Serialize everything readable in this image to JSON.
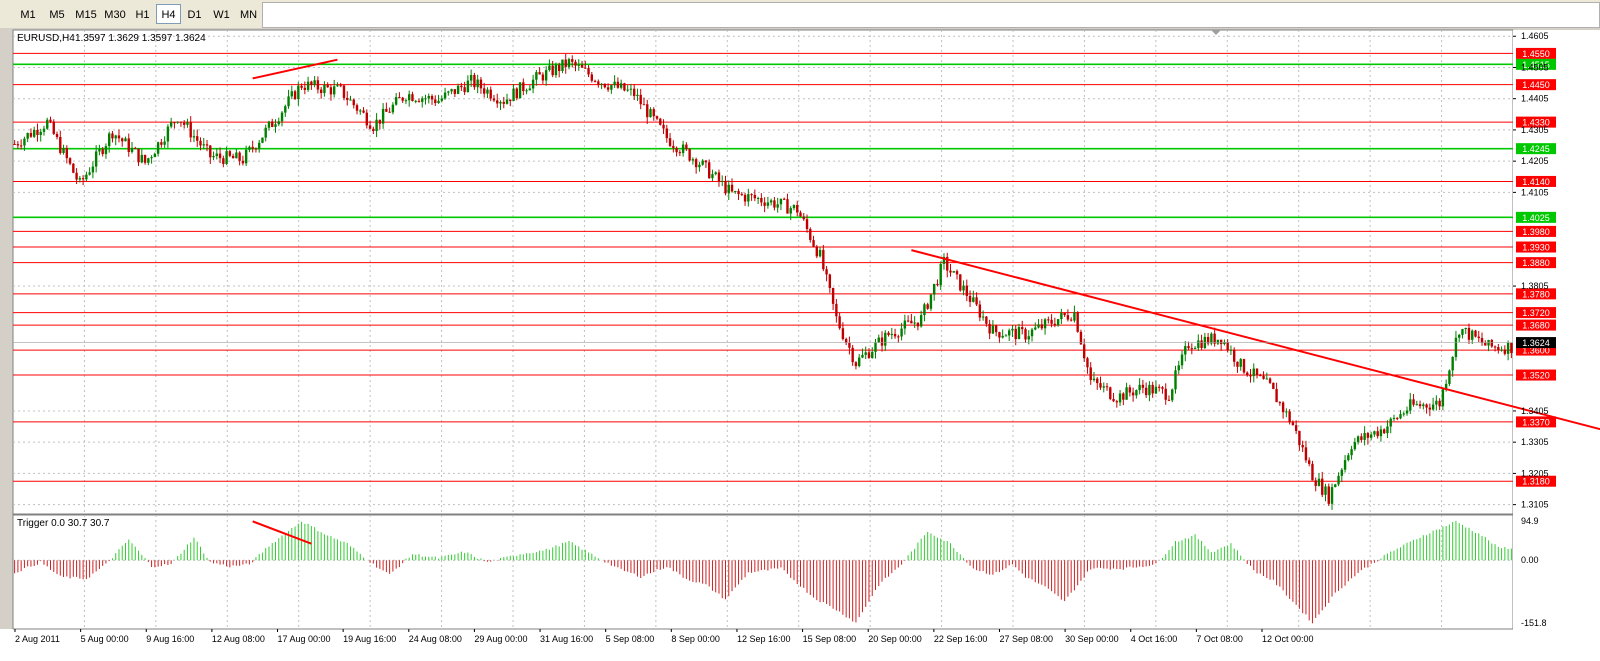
{
  "toolbar": {
    "timeframes": [
      "M1",
      "M5",
      "M15",
      "M30",
      "H1",
      "H4",
      "D1",
      "W1",
      "MN"
    ],
    "active": "H4"
  },
  "chart_header": {
    "symbol_tf": "EURUSD,H4",
    "ohlc": "1.3597 1.3629 1.3597 1.3624"
  },
  "indicator_header": "Trigger 0.0 30.7 30.7",
  "colors": {
    "background": "#ffffff",
    "grid": "#c0c0c0",
    "bull": "#008000",
    "bear": "#c00000",
    "red_level": "#ff0000",
    "green_level": "#00c800",
    "trendline": "#ff0000",
    "hist_up": "#33cc33",
    "hist_down": "#cc2020"
  },
  "chart_data": [
    {
      "type": "candlestick",
      "symbol": "EURUSD",
      "timeframe": "H4",
      "ylim": [
        1.3075,
        1.4625
      ],
      "y_ticks": [
        "1.4605",
        "1.4505",
        "1.4405",
        "1.4305",
        "1.4205",
        "1.4105",
        "1.3805",
        "1.3405",
        "1.3305",
        "1.3205",
        "1.3105"
      ],
      "x_ticks": [
        "2 Aug 2011",
        "5 Aug 00:00",
        "9 Aug 16:00",
        "12 Aug 08:00",
        "17 Aug 00:00",
        "19 Aug 16:00",
        "24 Aug 08:00",
        "29 Aug 00:00",
        "31 Aug 16:00",
        "5 Sep 08:00",
        "8 Sep 00:00",
        "12 Sep 16:00",
        "15 Sep 08:00",
        "20 Sep 00:00",
        "22 Sep 16:00",
        "27 Sep 08:00",
        "30 Sep 00:00",
        "4 Oct 16:00",
        "7 Oct 08:00",
        "12 Oct 00:00"
      ],
      "current_price": "1.3624",
      "levels": [
        {
          "value": "1.4550",
          "color": "red"
        },
        {
          "value": "1.4515",
          "color": "green"
        },
        {
          "value": "1.4450",
          "color": "red"
        },
        {
          "value": "1.4330",
          "color": "red"
        },
        {
          "value": "1.4245",
          "color": "green"
        },
        {
          "value": "1.4140",
          "color": "red"
        },
        {
          "value": "1.4025",
          "color": "green"
        },
        {
          "value": "1.3980",
          "color": "red"
        },
        {
          "value": "1.3930",
          "color": "red"
        },
        {
          "value": "1.3880",
          "color": "red"
        },
        {
          "value": "1.3780",
          "color": "red"
        },
        {
          "value": "1.3720",
          "color": "red"
        },
        {
          "value": "1.3680",
          "color": "red"
        },
        {
          "value": "1.3600",
          "color": "red"
        },
        {
          "value": "1.3520",
          "color": "red"
        },
        {
          "value": "1.3370",
          "color": "red"
        },
        {
          "value": "1.3180",
          "color": "red"
        }
      ],
      "trendlines": [
        {
          "from": {
            "bar": 73,
            "price": 1.447
          },
          "to": {
            "bar": 99,
            "price": 1.453
          }
        },
        {
          "from": {
            "bar": 275,
            "price": 1.392
          },
          "to": {
            "bar": 520,
            "price": 1.3255
          }
        }
      ],
      "anchor_points": [
        [
          0,
          1.426
        ],
        [
          10,
          1.433
        ],
        [
          20,
          1.413
        ],
        [
          30,
          1.43
        ],
        [
          40,
          1.42
        ],
        [
          50,
          1.435
        ],
        [
          60,
          1.422
        ],
        [
          70,
          1.421
        ],
        [
          80,
          1.434
        ],
        [
          88,
          1.445
        ],
        [
          100,
          1.443
        ],
        [
          110,
          1.432
        ],
        [
          120,
          1.442
        ],
        [
          130,
          1.44
        ],
        [
          140,
          1.446
        ],
        [
          150,
          1.44
        ],
        [
          160,
          1.447
        ],
        [
          170,
          1.452
        ],
        [
          180,
          1.446
        ],
        [
          190,
          1.442
        ],
        [
          200,
          1.428
        ],
        [
          210,
          1.42
        ],
        [
          220,
          1.41
        ],
        [
          230,
          1.408
        ],
        [
          240,
          1.405
        ],
        [
          247,
          1.39
        ],
        [
          252,
          1.37
        ],
        [
          258,
          1.356
        ],
        [
          268,
          1.365
        ],
        [
          278,
          1.37
        ],
        [
          285,
          1.388
        ],
        [
          292,
          1.378
        ],
        [
          300,
          1.366
        ],
        [
          310,
          1.365
        ],
        [
          320,
          1.37
        ],
        [
          325,
          1.372
        ],
        [
          330,
          1.35
        ],
        [
          338,
          1.345
        ],
        [
          346,
          1.348
        ],
        [
          354,
          1.346
        ],
        [
          360,
          1.362
        ],
        [
          370,
          1.364
        ],
        [
          376,
          1.355
        ],
        [
          385,
          1.348
        ],
        [
          392,
          1.336
        ],
        [
          398,
          1.32
        ],
        [
          403,
          1.313
        ],
        [
          410,
          1.33
        ],
        [
          420,
          1.335
        ],
        [
          428,
          1.342
        ],
        [
          437,
          1.343
        ],
        [
          443,
          1.367
        ],
        [
          452,
          1.361
        ]
      ]
    },
    {
      "type": "histogram",
      "name": "Trigger",
      "values_shown": [
        "0.0",
        "30.7",
        "30.7"
      ],
      "ylim": [
        -151.8,
        94.9
      ],
      "y_ticks": [
        "94.9",
        "0.00",
        "-151.8"
      ],
      "anchor_points": [
        [
          0,
          -30
        ],
        [
          8,
          -5
        ],
        [
          14,
          -40
        ],
        [
          22,
          -45
        ],
        [
          28,
          -10
        ],
        [
          35,
          50
        ],
        [
          42,
          -15
        ],
        [
          48,
          -10
        ],
        [
          55,
          55
        ],
        [
          60,
          -5
        ],
        [
          66,
          -15
        ],
        [
          72,
          -10
        ],
        [
          78,
          35
        ],
        [
          88,
          95
        ],
        [
          96,
          60
        ],
        [
          102,
          40
        ],
        [
          110,
          -10
        ],
        [
          115,
          -35
        ],
        [
          122,
          15
        ],
        [
          130,
          5
        ],
        [
          138,
          20
        ],
        [
          145,
          -5
        ],
        [
          155,
          15
        ],
        [
          163,
          25
        ],
        [
          170,
          45
        ],
        [
          178,
          10
        ],
        [
          185,
          -20
        ],
        [
          192,
          -40
        ],
        [
          200,
          -15
        ],
        [
          206,
          -45
        ],
        [
          212,
          -60
        ],
        [
          218,
          -95
        ],
        [
          225,
          -30
        ],
        [
          235,
          -20
        ],
        [
          245,
          -90
        ],
        [
          252,
          -120
        ],
        [
          258,
          -151
        ],
        [
          265,
          -60
        ],
        [
          272,
          -10
        ],
        [
          280,
          70
        ],
        [
          287,
          40
        ],
        [
          294,
          -20
        ],
        [
          300,
          -35
        ],
        [
          306,
          -10
        ],
        [
          310,
          -40
        ],
        [
          316,
          -65
        ],
        [
          322,
          -100
        ],
        [
          330,
          -20
        ],
        [
          340,
          -20
        ],
        [
          350,
          -10
        ],
        [
          356,
          45
        ],
        [
          362,
          60
        ],
        [
          367,
          20
        ],
        [
          373,
          40
        ],
        [
          380,
          -25
        ],
        [
          386,
          -50
        ],
        [
          392,
          -100
        ],
        [
          398,
          -151
        ],
        [
          405,
          -80
        ],
        [
          412,
          -30
        ],
        [
          422,
          20
        ],
        [
          432,
          60
        ],
        [
          442,
          94
        ],
        [
          450,
          60
        ],
        [
          455,
          30
        ]
      ]
    }
  ]
}
